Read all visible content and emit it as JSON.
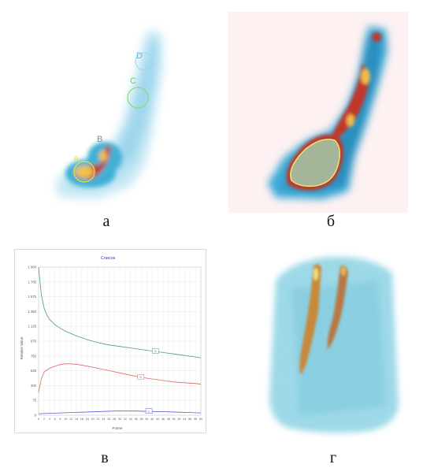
{
  "captions": {
    "a": "а",
    "b": "б",
    "v": "в",
    "g": "г"
  },
  "panel_a": {
    "markers": [
      "A",
      "B",
      "C",
      "D"
    ]
  },
  "chart": {
    "title": "Список",
    "ylabel": "Relative Value",
    "xlabel": "Frame",
    "yticks": [
      "1 960",
      "1 785",
      "1 575",
      "1 350",
      "1 125",
      "975",
      "750",
      "525",
      "300",
      "75",
      "0"
    ],
    "xticks": [
      "0",
      "2",
      "4",
      "6",
      "8",
      "10",
      "12",
      "14",
      "16",
      "18",
      "20",
      "22",
      "24",
      "26",
      "28",
      "30",
      "32",
      "34",
      "36",
      "38",
      "40",
      "42",
      "44",
      "46",
      "48",
      "50",
      "52",
      "54",
      "56",
      "58",
      "60"
    ],
    "series_labels": [
      "A",
      "B",
      "C"
    ]
  },
  "chart_data": {
    "type": "line",
    "title": "Список",
    "xlabel": "Frame",
    "ylabel": "Relative Value",
    "grid": true,
    "xlim": [
      0,
      60
    ],
    "ylim": [
      0,
      1960
    ],
    "series": [
      {
        "name": "A",
        "color": "#4f9a82",
        "x": [
          0,
          1,
          2,
          3,
          4,
          6,
          8,
          10,
          14,
          18,
          22,
          26,
          30,
          34,
          38,
          42,
          46,
          50,
          54,
          58,
          60
        ],
        "values": [
          1960,
          1600,
          1420,
          1330,
          1270,
          1200,
          1150,
          1110,
          1050,
          1000,
          960,
          930,
          910,
          890,
          870,
          850,
          830,
          810,
          790,
          770,
          760
        ]
      },
      {
        "name": "B",
        "color": "#e06a63",
        "x": [
          0,
          1,
          2,
          4,
          6,
          8,
          10,
          12,
          14,
          18,
          22,
          26,
          30,
          34,
          38,
          42,
          46,
          50,
          54,
          58,
          60
        ],
        "values": [
          300,
          480,
          570,
          620,
          650,
          670,
          680,
          680,
          675,
          650,
          620,
          590,
          560,
          530,
          500,
          480,
          460,
          440,
          430,
          420,
          410
        ]
      },
      {
        "name": "C",
        "color": "#5a5fd6",
        "x": [
          0,
          4,
          8,
          12,
          16,
          20,
          24,
          28,
          32,
          36,
          40,
          44,
          48,
          52,
          56,
          60
        ],
        "values": [
          20,
          25,
          30,
          35,
          40,
          45,
          50,
          55,
          55,
          55,
          50,
          48,
          45,
          40,
          35,
          30
        ]
      }
    ]
  }
}
